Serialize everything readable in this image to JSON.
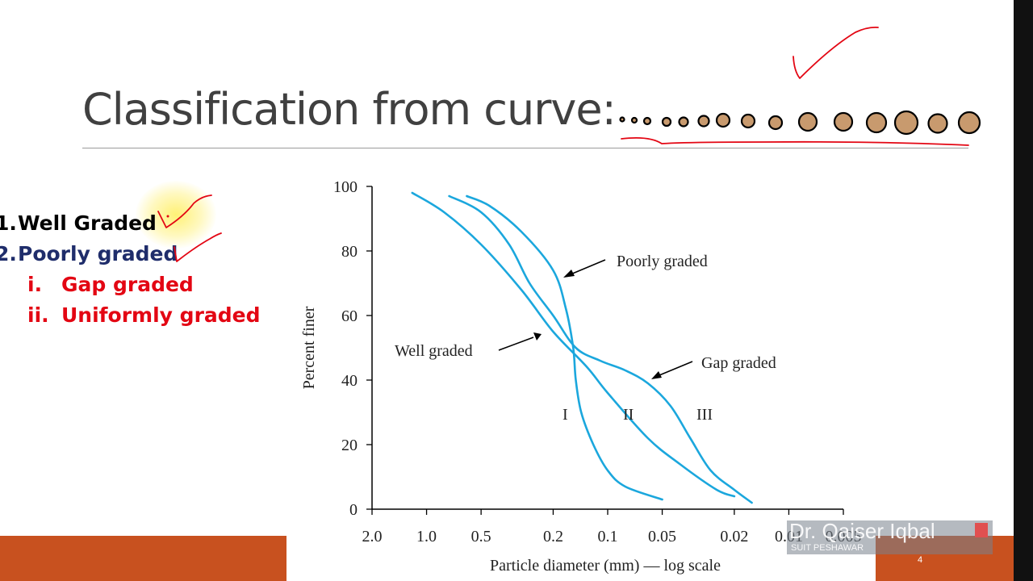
{
  "slide": {
    "title": "Classification from curve:",
    "page_number": "4"
  },
  "list": [
    {
      "num": "1.",
      "text": "Well Graded",
      "color": "#000000"
    },
    {
      "num": "2.",
      "text": "Poorly graded",
      "color": "#1f2d6b"
    },
    {
      "num": "i.",
      "text": "Gap graded",
      "color": "#e30613"
    },
    {
      "num": "ii.",
      "text": "Uniformly graded",
      "color": "#e30613"
    }
  ],
  "watermark": {
    "name": "Dr. Qaiser Iqbal",
    "org": "SUIT PESHAWAR"
  },
  "colors": {
    "accent": "#c8511f",
    "curve": "#1ba7dd",
    "ink": "#e30613"
  },
  "chart_data": {
    "type": "line",
    "xlabel": "Particle diameter (mm) — log scale",
    "ylabel": "Percent finer",
    "x_scale": "log",
    "x_reversed": true,
    "xlim": [
      2.0,
      0.005
    ],
    "ylim": [
      0,
      100
    ],
    "x_ticks": [
      "2.0",
      "1.0",
      "0.5",
      "0.2",
      "0.1",
      "0.05",
      "0.02",
      "0.01",
      "0.005"
    ],
    "y_ticks": [
      "0",
      "20",
      "40",
      "60",
      "80",
      "100"
    ],
    "series": [
      {
        "name": "Well graded",
        "x": [
          1.2,
          0.8,
          0.5,
          0.3,
          0.2,
          0.13,
          0.1,
          0.06,
          0.04,
          0.025,
          0.02
        ],
        "y": [
          98,
          92,
          82,
          68,
          55,
          44,
          36,
          22,
          14,
          6,
          4
        ]
      },
      {
        "name": "Poorly graded",
        "x": [
          0.6,
          0.45,
          0.3,
          0.2,
          0.17,
          0.155,
          0.15,
          0.14,
          0.12,
          0.1,
          0.08,
          0.05
        ],
        "y": [
          97,
          94,
          86,
          74,
          62,
          50,
          40,
          30,
          20,
          12,
          7,
          3
        ]
      },
      {
        "name": "Gap graded",
        "x": [
          0.75,
          0.5,
          0.35,
          0.27,
          0.2,
          0.15,
          0.11,
          0.08,
          0.06,
          0.045,
          0.035,
          0.027,
          0.02,
          0.016
        ],
        "y": [
          97,
          92,
          82,
          70,
          60,
          50,
          46,
          43,
          39,
          32,
          22,
          12,
          6,
          2
        ]
      }
    ],
    "curve_labels": [
      "I",
      "II",
      "III"
    ],
    "annotations": [
      "Poorly graded",
      "Well graded",
      "Gap graded"
    ]
  }
}
